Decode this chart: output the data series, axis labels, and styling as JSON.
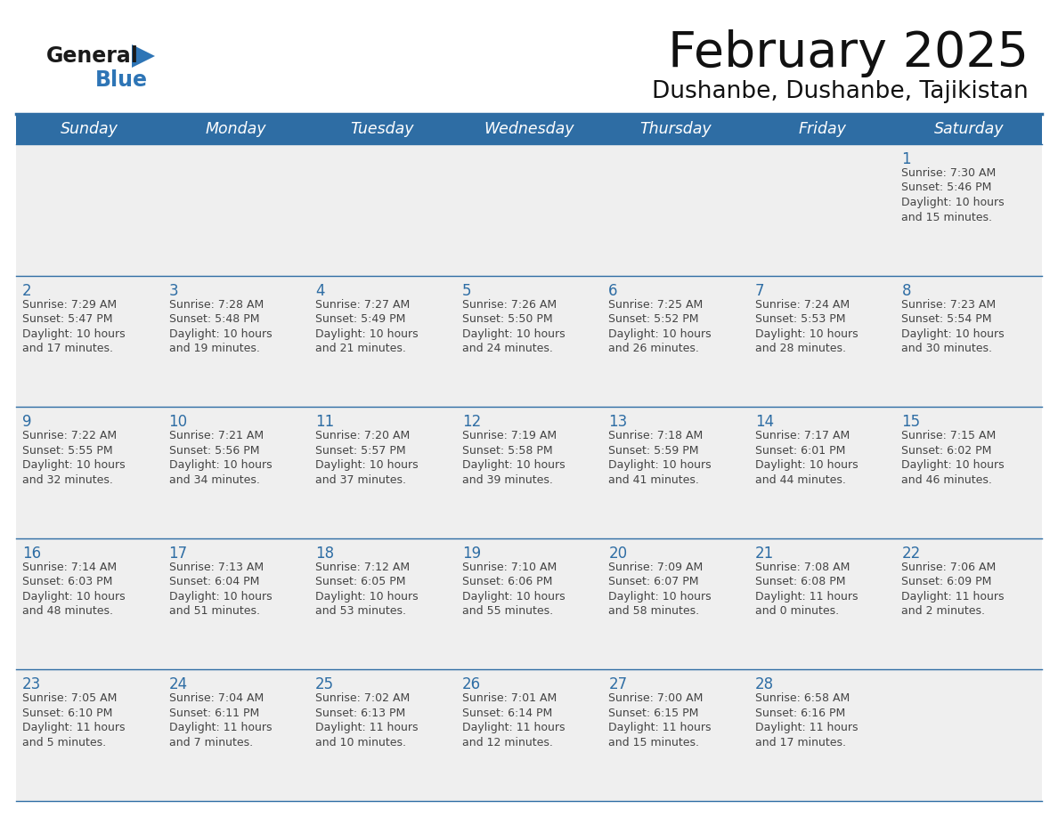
{
  "title": "February 2025",
  "subtitle": "Dushanbe, Dushanbe, Tajikistan",
  "header_bg": "#2E6DA4",
  "header_text": "#FFFFFF",
  "day_names": [
    "Sunday",
    "Monday",
    "Tuesday",
    "Wednesday",
    "Thursday",
    "Friday",
    "Saturday"
  ],
  "row_bg": "#EFEFEF",
  "cell_text_color": "#444444",
  "date_color": "#2E6DA4",
  "border_color": "#2E6DA4",
  "logo_general_color": "#1a1a1a",
  "logo_blue_color": "#2E75B6",
  "figsize": [
    11.88,
    9.18
  ],
  "dpi": 100,
  "calendar_data": [
    [
      null,
      null,
      null,
      null,
      null,
      null,
      {
        "day": "1",
        "sunrise": "7:30 AM",
        "sunset": "5:46 PM",
        "daylight1": "10 hours",
        "daylight2": "and 15 minutes."
      }
    ],
    [
      {
        "day": "2",
        "sunrise": "7:29 AM",
        "sunset": "5:47 PM",
        "daylight1": "10 hours",
        "daylight2": "and 17 minutes."
      },
      {
        "day": "3",
        "sunrise": "7:28 AM",
        "sunset": "5:48 PM",
        "daylight1": "10 hours",
        "daylight2": "and 19 minutes."
      },
      {
        "day": "4",
        "sunrise": "7:27 AM",
        "sunset": "5:49 PM",
        "daylight1": "10 hours",
        "daylight2": "and 21 minutes."
      },
      {
        "day": "5",
        "sunrise": "7:26 AM",
        "sunset": "5:50 PM",
        "daylight1": "10 hours",
        "daylight2": "and 24 minutes."
      },
      {
        "day": "6",
        "sunrise": "7:25 AM",
        "sunset": "5:52 PM",
        "daylight1": "10 hours",
        "daylight2": "and 26 minutes."
      },
      {
        "day": "7",
        "sunrise": "7:24 AM",
        "sunset": "5:53 PM",
        "daylight1": "10 hours",
        "daylight2": "and 28 minutes."
      },
      {
        "day": "8",
        "sunrise": "7:23 AM",
        "sunset": "5:54 PM",
        "daylight1": "10 hours",
        "daylight2": "and 30 minutes."
      }
    ],
    [
      {
        "day": "9",
        "sunrise": "7:22 AM",
        "sunset": "5:55 PM",
        "daylight1": "10 hours",
        "daylight2": "and 32 minutes."
      },
      {
        "day": "10",
        "sunrise": "7:21 AM",
        "sunset": "5:56 PM",
        "daylight1": "10 hours",
        "daylight2": "and 34 minutes."
      },
      {
        "day": "11",
        "sunrise": "7:20 AM",
        "sunset": "5:57 PM",
        "daylight1": "10 hours",
        "daylight2": "and 37 minutes."
      },
      {
        "day": "12",
        "sunrise": "7:19 AM",
        "sunset": "5:58 PM",
        "daylight1": "10 hours",
        "daylight2": "and 39 minutes."
      },
      {
        "day": "13",
        "sunrise": "7:18 AM",
        "sunset": "5:59 PM",
        "daylight1": "10 hours",
        "daylight2": "and 41 minutes."
      },
      {
        "day": "14",
        "sunrise": "7:17 AM",
        "sunset": "6:01 PM",
        "daylight1": "10 hours",
        "daylight2": "and 44 minutes."
      },
      {
        "day": "15",
        "sunrise": "7:15 AM",
        "sunset": "6:02 PM",
        "daylight1": "10 hours",
        "daylight2": "and 46 minutes."
      }
    ],
    [
      {
        "day": "16",
        "sunrise": "7:14 AM",
        "sunset": "6:03 PM",
        "daylight1": "10 hours",
        "daylight2": "and 48 minutes."
      },
      {
        "day": "17",
        "sunrise": "7:13 AM",
        "sunset": "6:04 PM",
        "daylight1": "10 hours",
        "daylight2": "and 51 minutes."
      },
      {
        "day": "18",
        "sunrise": "7:12 AM",
        "sunset": "6:05 PM",
        "daylight1": "10 hours",
        "daylight2": "and 53 minutes."
      },
      {
        "day": "19",
        "sunrise": "7:10 AM",
        "sunset": "6:06 PM",
        "daylight1": "10 hours",
        "daylight2": "and 55 minutes."
      },
      {
        "day": "20",
        "sunrise": "7:09 AM",
        "sunset": "6:07 PM",
        "daylight1": "10 hours",
        "daylight2": "and 58 minutes."
      },
      {
        "day": "21",
        "sunrise": "7:08 AM",
        "sunset": "6:08 PM",
        "daylight1": "11 hours",
        "daylight2": "and 0 minutes."
      },
      {
        "day": "22",
        "sunrise": "7:06 AM",
        "sunset": "6:09 PM",
        "daylight1": "11 hours",
        "daylight2": "and 2 minutes."
      }
    ],
    [
      {
        "day": "23",
        "sunrise": "7:05 AM",
        "sunset": "6:10 PM",
        "daylight1": "11 hours",
        "daylight2": "and 5 minutes."
      },
      {
        "day": "24",
        "sunrise": "7:04 AM",
        "sunset": "6:11 PM",
        "daylight1": "11 hours",
        "daylight2": "and 7 minutes."
      },
      {
        "day": "25",
        "sunrise": "7:02 AM",
        "sunset": "6:13 PM",
        "daylight1": "11 hours",
        "daylight2": "and 10 minutes."
      },
      {
        "day": "26",
        "sunrise": "7:01 AM",
        "sunset": "6:14 PM",
        "daylight1": "11 hours",
        "daylight2": "and 12 minutes."
      },
      {
        "day": "27",
        "sunrise": "7:00 AM",
        "sunset": "6:15 PM",
        "daylight1": "11 hours",
        "daylight2": "and 15 minutes."
      },
      {
        "day": "28",
        "sunrise": "6:58 AM",
        "sunset": "6:16 PM",
        "daylight1": "11 hours",
        "daylight2": "and 17 minutes."
      },
      null
    ]
  ]
}
